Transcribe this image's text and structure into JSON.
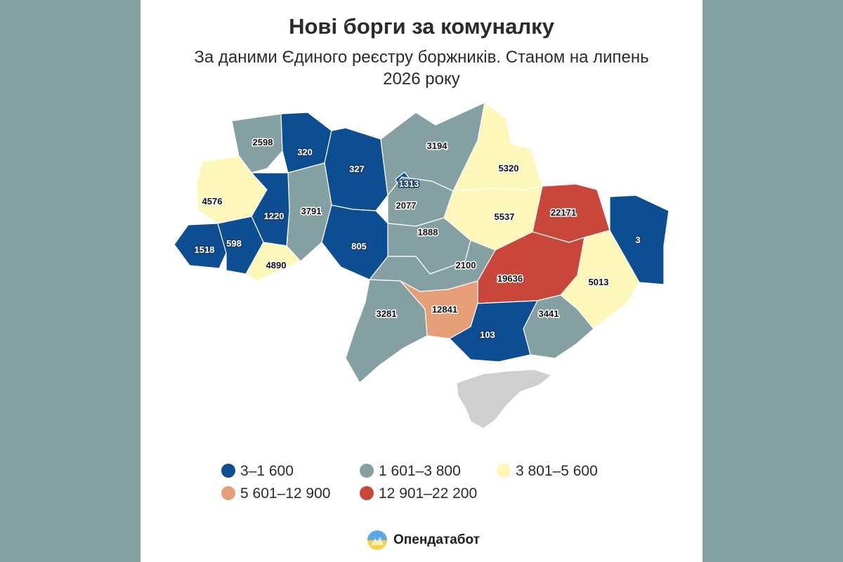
{
  "title": "Нові борги за комуналку",
  "subtitle": "За даними Єдиного реєстру боржників. Станом на липень 2026 року",
  "colors": {
    "c1": "#0d4d91",
    "c2": "#85a0a2",
    "c3": "#fdf8b9",
    "c4": "#e59e78",
    "c5": "#c9473a",
    "occupied": "#cfcfcf"
  },
  "legend": [
    {
      "label": "3–1 600",
      "color": "c1"
    },
    {
      "label": "1 601–3 800",
      "color": "c2"
    },
    {
      "label": "3 801–5 600",
      "color": "c3"
    },
    {
      "label": "5 601–12 900",
      "color": "c4"
    },
    {
      "label": "12 901–22 200",
      "color": "c5"
    }
  ],
  "regions": [
    {
      "value": "2598",
      "color": "c2"
    },
    {
      "value": "320",
      "color": "c1"
    },
    {
      "value": "327",
      "color": "c1"
    },
    {
      "value": "3194",
      "color": "c2"
    },
    {
      "value": "5320",
      "color": "c3"
    },
    {
      "value": "1313",
      "color": "c1"
    },
    {
      "value": "4576",
      "color": "c3"
    },
    {
      "value": "3791",
      "color": "c2"
    },
    {
      "value": "2077",
      "color": "c2"
    },
    {
      "value": "1220",
      "color": "c1"
    },
    {
      "value": "5537",
      "color": "c3"
    },
    {
      "value": "22171",
      "color": "c5"
    },
    {
      "value": "1888",
      "color": "c2"
    },
    {
      "value": "1518",
      "color": "c1"
    },
    {
      "value": "598",
      "color": "c1"
    },
    {
      "value": "805",
      "color": "c1"
    },
    {
      "value": "3",
      "color": "c1"
    },
    {
      "value": "4890",
      "color": "c3"
    },
    {
      "value": "2100",
      "color": "c2"
    },
    {
      "value": "19636",
      "color": "c5"
    },
    {
      "value": "5013",
      "color": "c3"
    },
    {
      "value": "12841",
      "color": "c4"
    },
    {
      "value": "3441",
      "color": "c2"
    },
    {
      "value": "3281",
      "color": "c2"
    },
    {
      "value": "103",
      "color": "c1"
    }
  ],
  "brand": {
    "name": "Опендатабот"
  }
}
